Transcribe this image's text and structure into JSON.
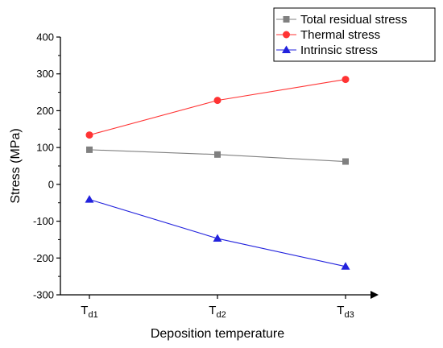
{
  "chart_data": {
    "type": "line",
    "xlabel": "Deposition temperature",
    "ylabel": "Stress (MPa)",
    "ylim": [
      -300,
      400
    ],
    "yticks": [
      -300,
      -200,
      -100,
      0,
      100,
      200,
      300,
      400
    ],
    "categories": [
      {
        "main": "T",
        "sub": "d1"
      },
      {
        "main": "T",
        "sub": "d2"
      },
      {
        "main": "T",
        "sub": "d3"
      }
    ],
    "legend_position": "top-right",
    "series": [
      {
        "name": "Total residual stress",
        "values": [
          94,
          81,
          62
        ],
        "color": "#808080",
        "marker": "square"
      },
      {
        "name": "Thermal stress",
        "values": [
          134,
          228,
          285
        ],
        "color": "#ff3333",
        "marker": "circle"
      },
      {
        "name": "Intrinsic stress",
        "values": [
          -41,
          -147,
          -223
        ],
        "color": "#2222dd",
        "marker": "triangle"
      }
    ]
  }
}
